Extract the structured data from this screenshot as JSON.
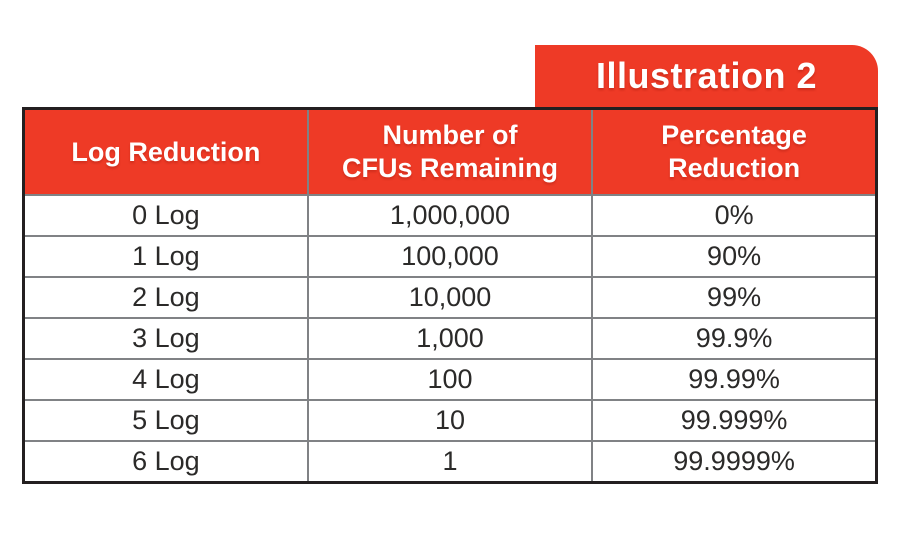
{
  "tab": {
    "label": "Illustration 2"
  },
  "colors": {
    "accent_red": "#ee3a26",
    "outer_border": "#231f20",
    "grid_gray": "#808285",
    "data_text": "#2b2a29",
    "header_text": "#ffffff",
    "background": "#ffffff"
  },
  "table": {
    "headers": [
      "Log Reduction",
      "Number of\nCFUs Remaining",
      "Percentage\nReduction"
    ],
    "rows": [
      {
        "log": "0 Log",
        "cfus": "1,000,000",
        "percent": "0%"
      },
      {
        "log": "1 Log",
        "cfus": "100,000",
        "percent": "90%"
      },
      {
        "log": "2 Log",
        "cfus": "10,000",
        "percent": "99%"
      },
      {
        "log": "3 Log",
        "cfus": "1,000",
        "percent": "99.9%"
      },
      {
        "log": "4 Log",
        "cfus": "100",
        "percent": "99.99%"
      },
      {
        "log": "5 Log",
        "cfus": "10",
        "percent": "99.999%"
      },
      {
        "log": "6 Log",
        "cfus": "1",
        "percent": "99.9999%"
      }
    ]
  },
  "chart_data": {
    "type": "table",
    "title": "Illustration 2",
    "columns": [
      "Log Reduction",
      "Number of CFUs Remaining",
      "Percentage Reduction"
    ],
    "rows": [
      [
        "0 Log",
        "1,000,000",
        "0%"
      ],
      [
        "1 Log",
        "100,000",
        "90%"
      ],
      [
        "2 Log",
        "10,000",
        "99%"
      ],
      [
        "3 Log",
        "1,000",
        "99.9%"
      ],
      [
        "4 Log",
        "100",
        "99.99%"
      ],
      [
        "5 Log",
        "10",
        "99.999%"
      ],
      [
        "6 Log",
        "1",
        "99.9999%"
      ]
    ],
    "numeric": {
      "log_reduction": [
        0,
        1,
        2,
        3,
        4,
        5,
        6
      ],
      "cfus_remaining": [
        1000000,
        100000,
        10000,
        1000,
        100,
        10,
        1
      ],
      "percentage_reduction": [
        0,
        90,
        99,
        99.9,
        99.99,
        99.999,
        99.9999
      ]
    }
  }
}
